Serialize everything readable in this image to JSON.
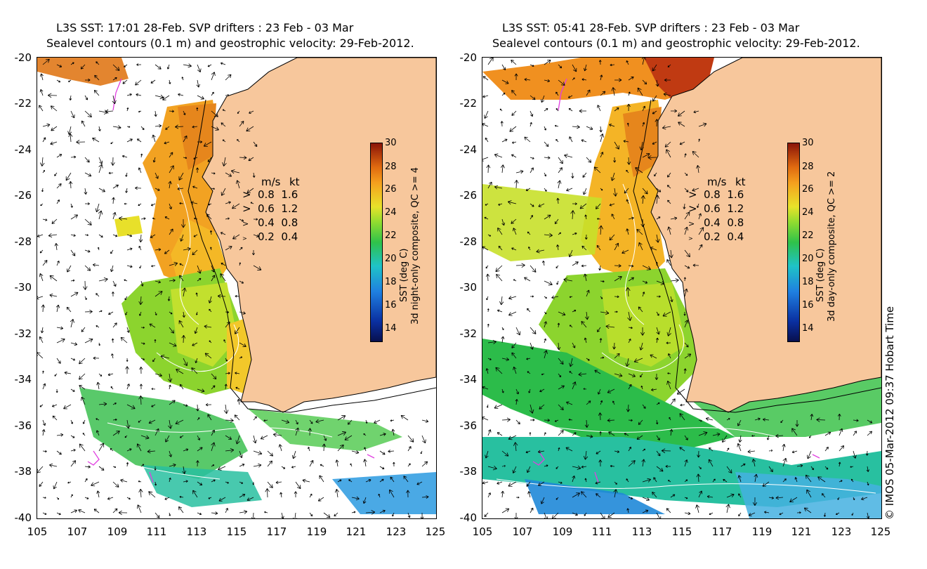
{
  "colors": {
    "land": "#f7c79c",
    "sea": "#ffffff",
    "contour": "#ffffff",
    "arrow": "#000000",
    "drifter": "#e040e0",
    "coast": "#000000"
  },
  "left": {
    "title_line1": "L3S SST: 17:01 28-Feb. SVP drifters : 23 Feb - 03 Mar",
    "title_line2": "Sealevel contours (0.1 m) and geostrophic velocity: 29-Feb-2012.",
    "colorbar_label": "SST (deg C)",
    "colorbar_sublabel": "3d night-only composite, QC >= 4"
  },
  "right": {
    "title_line1": "L3S SST: 05:41 28-Feb. SVP drifters : 23 Feb - 03 Mar",
    "title_line2": "Sealevel contours (0.1 m) and geostrophic velocity: 29-Feb-2012.",
    "colorbar_label": "SST (deg C)",
    "colorbar_sublabel": "3d day-only composite, QC >= 2"
  },
  "y_ticks": [
    "-20",
    "-22",
    "-24",
    "-26",
    "-28",
    "-30",
    "-32",
    "-34",
    "-36",
    "-38",
    "-40"
  ],
  "x_ticks": [
    "105",
    "107",
    "109",
    "111",
    "113",
    "115",
    "117",
    "119",
    "121",
    "123",
    "125"
  ],
  "colorbar_ticks": [
    "30",
    "28",
    "26",
    "24",
    "22",
    "20",
    "18",
    "16",
    "14"
  ],
  "legend": {
    "header_ms": "m/s",
    "header_kt": "kt",
    "rows": [
      {
        "ms": "0.8",
        "kt": "1.6"
      },
      {
        "ms": "0.6",
        "kt": "1.2"
      },
      {
        "ms": "0.4",
        "kt": "0.8"
      },
      {
        "ms": "0.2",
        "kt": "0.4"
      }
    ]
  },
  "copyright": "© IMOS 05-Mar-2012 09:37 Hobart Time"
}
